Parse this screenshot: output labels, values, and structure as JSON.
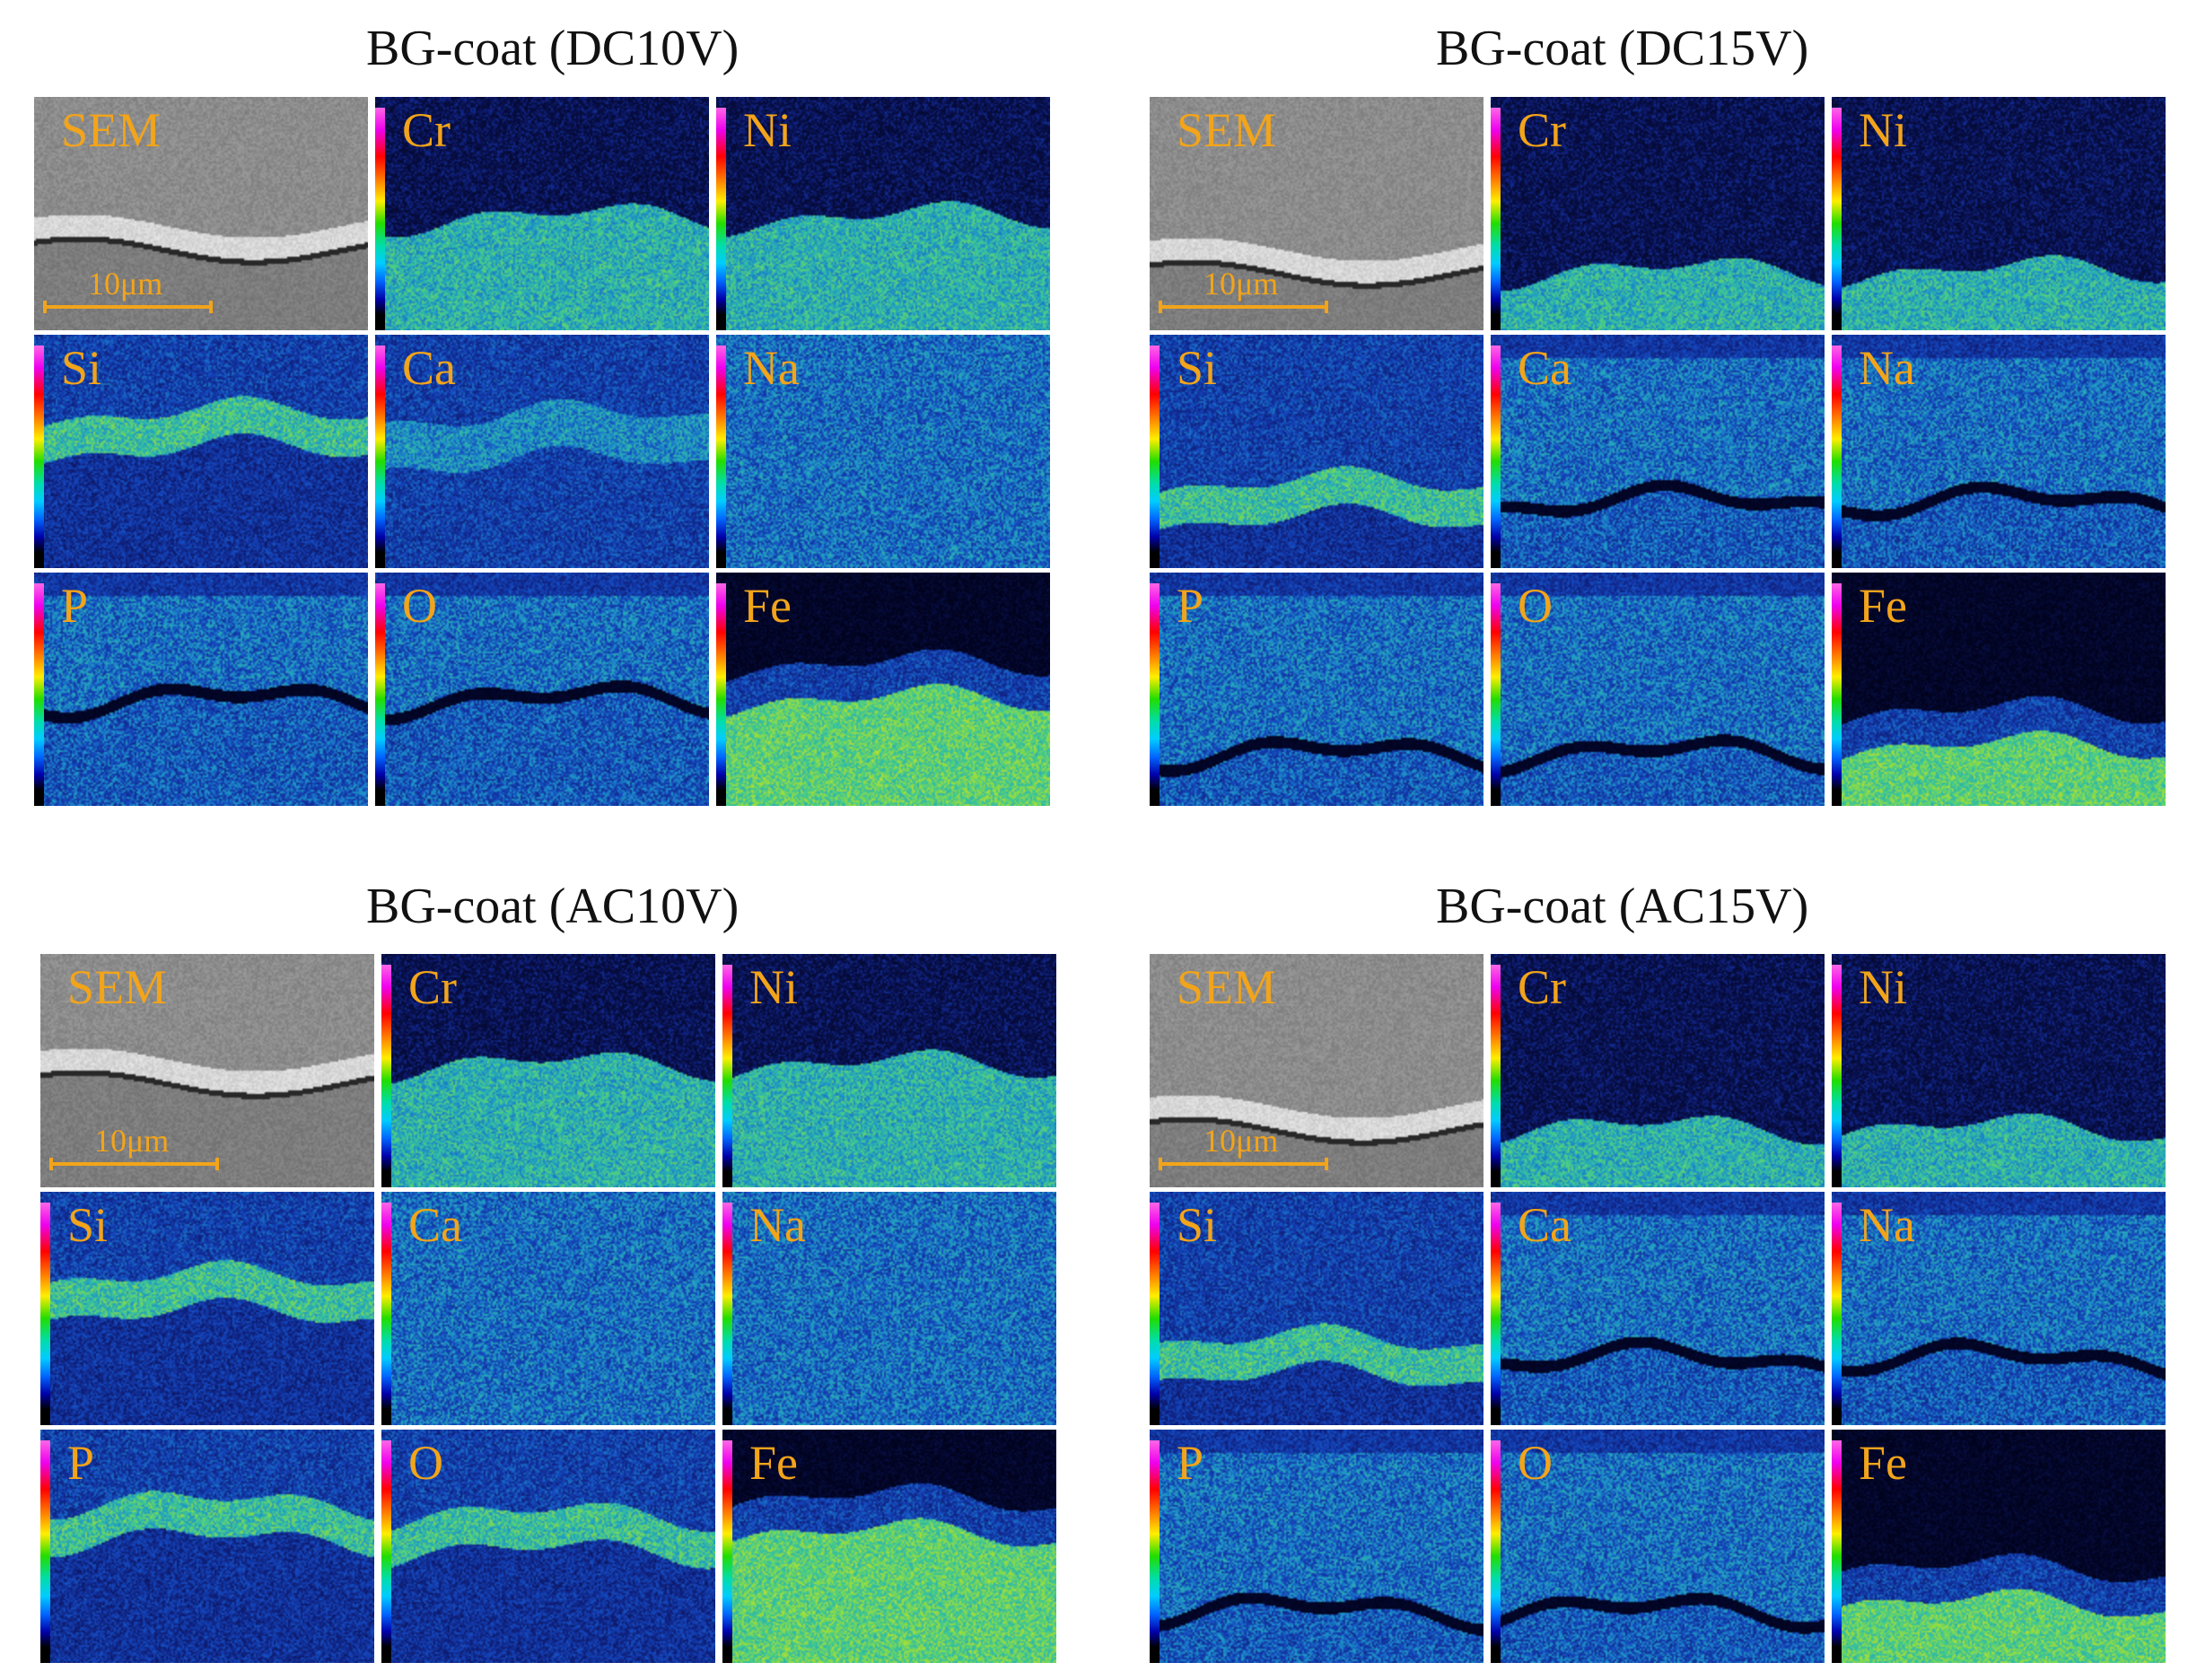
{
  "figure": {
    "groups": [
      {
        "title": "BG-coat (DC10V)",
        "scale_label": "10μm",
        "panels": [
          {
            "label": "SEM",
            "kind": "sem",
            "boundary": 0.6
          },
          {
            "label": "Cr",
            "kind": "lower_bright",
            "boundary": 0.52
          },
          {
            "label": "Ni",
            "kind": "lower_bright",
            "boundary": 0.52
          },
          {
            "label": "Si",
            "kind": "band",
            "boundary": 0.42
          },
          {
            "label": "Ca",
            "kind": "band_faint",
            "boundary": 0.45
          },
          {
            "label": "Na",
            "kind": "uniform",
            "boundary": 0.5
          },
          {
            "label": "P",
            "kind": "crack_upper",
            "boundary": 0.55
          },
          {
            "label": "O",
            "kind": "crack_upper",
            "boundary": 0.55
          },
          {
            "label": "Fe",
            "kind": "fe",
            "boundary": 0.55
          }
        ]
      },
      {
        "title": "BG-coat (DC15V)",
        "scale_label": "10μm",
        "panels": [
          {
            "label": "SEM",
            "kind": "sem",
            "boundary": 0.7
          },
          {
            "label": "Cr",
            "kind": "lower_bright",
            "boundary": 0.75
          },
          {
            "label": "Ni",
            "kind": "lower_bright",
            "boundary": 0.75
          },
          {
            "label": "Si",
            "kind": "band",
            "boundary": 0.72
          },
          {
            "label": "Ca",
            "kind": "crack_upper",
            "boundary": 0.72
          },
          {
            "label": "Na",
            "kind": "crack_upper",
            "boundary": 0.72
          },
          {
            "label": "P",
            "kind": "crack_upper",
            "boundary": 0.78
          },
          {
            "label": "O",
            "kind": "crack_upper",
            "boundary": 0.78
          },
          {
            "label": "Fe",
            "kind": "fe",
            "boundary": 0.75
          }
        ]
      },
      {
        "title": "BG-coat (AC10V)",
        "scale_label": "10μm",
        "panels": [
          {
            "label": "SEM",
            "kind": "sem",
            "boundary": 0.5
          },
          {
            "label": "Cr",
            "kind": "lower_bright",
            "boundary": 0.48
          },
          {
            "label": "Ni",
            "kind": "lower_bright",
            "boundary": 0.48
          },
          {
            "label": "Si",
            "kind": "band",
            "boundary": 0.45
          },
          {
            "label": "Ca",
            "kind": "uniform",
            "boundary": 0.5
          },
          {
            "label": "Na",
            "kind": "uniform",
            "boundary": 0.5
          },
          {
            "label": "P",
            "kind": "band",
            "boundary": 0.4
          },
          {
            "label": "O",
            "kind": "band",
            "boundary": 0.45
          },
          {
            "label": "Fe",
            "kind": "fe",
            "boundary": 0.45
          }
        ]
      },
      {
        "title": "BG-coat (AC15V)",
        "scale_label": "10μm",
        "panels": [
          {
            "label": "SEM",
            "kind": "sem",
            "boundary": 0.7
          },
          {
            "label": "Cr",
            "kind": "lower_bright",
            "boundary": 0.75
          },
          {
            "label": "Ni",
            "kind": "lower_bright",
            "boundary": 0.75
          },
          {
            "label": "Si",
            "kind": "band",
            "boundary": 0.72
          },
          {
            "label": "Ca",
            "kind": "crack_upper",
            "boundary": 0.72
          },
          {
            "label": "Na",
            "kind": "crack_upper",
            "boundary": 0.72
          },
          {
            "label": "P",
            "kind": "crack_upper",
            "boundary": 0.78
          },
          {
            "label": "O",
            "kind": "crack_upper",
            "boundary": 0.78
          },
          {
            "label": "Fe",
            "kind": "fe",
            "boundary": 0.75
          }
        ]
      }
    ]
  }
}
